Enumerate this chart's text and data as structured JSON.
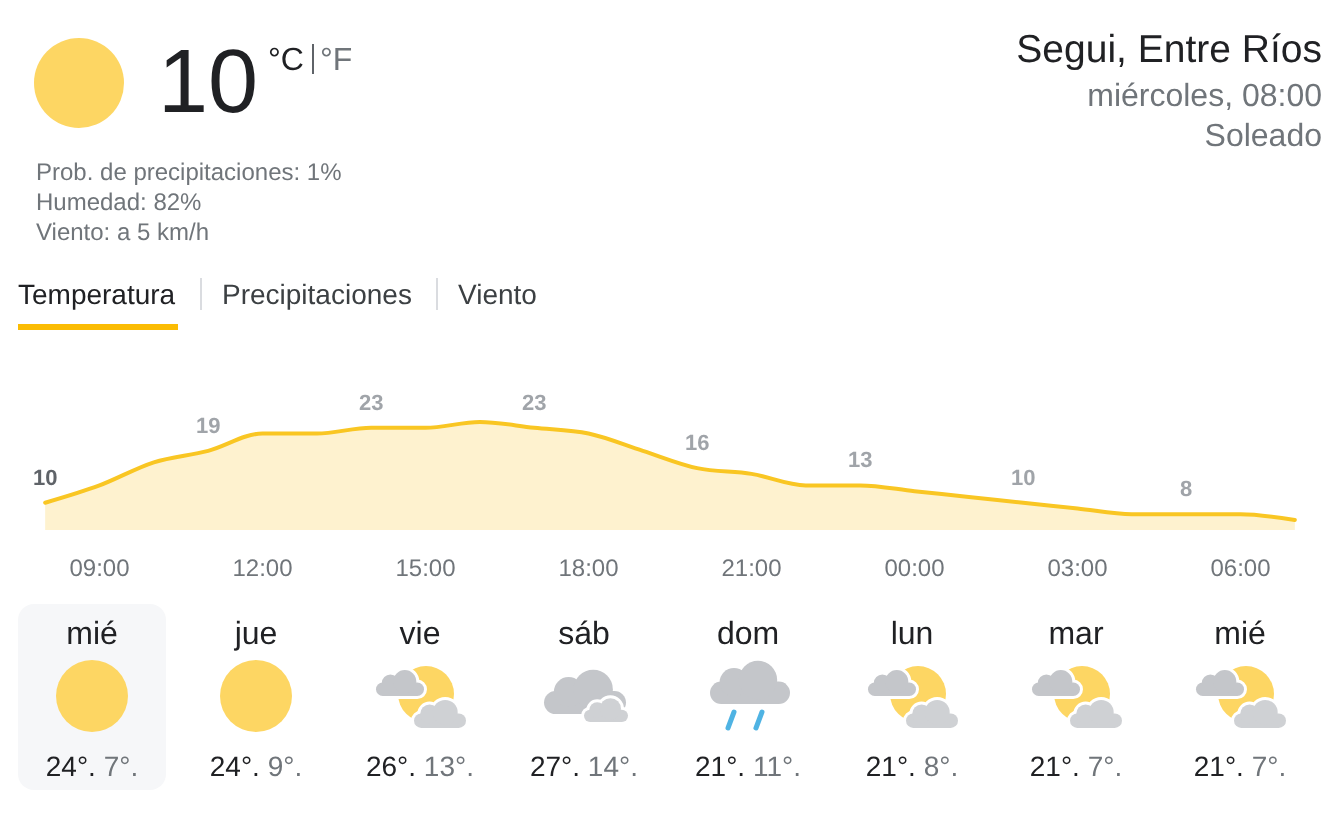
{
  "chart_data": [
    {
      "type": "other",
      "title": "Segui, Entre Ríos",
      "subtitle": "miércoles, 08:00",
      "annotations": [
        "10",
        "°C",
        "°F",
        "Prob. de precipitaciones: 1%",
        "Humedad: 82%",
        "Viento: a 5 km/h",
        "Soleado",
        "Temperatura",
        "Precipitaciones",
        "Viento"
      ]
    },
    {
      "type": "area",
      "categories": [
        null,
        "09:00",
        null,
        null,
        "12:00",
        null,
        null,
        "15:00",
        null,
        null,
        "18:00",
        null,
        null,
        "21:00",
        null,
        null,
        "00:00",
        null,
        null,
        "03:00",
        null,
        null,
        "06:00",
        null
      ],
      "values": [
        10,
        13,
        17,
        19,
        22,
        22,
        23,
        23,
        24,
        23,
        22,
        19,
        16,
        15,
        13,
        13,
        12,
        11,
        10,
        9,
        8,
        8,
        8,
        7
      ],
      "color": "#f9c623",
      "value_labels": [
        "10",
        null,
        null,
        "19",
        null,
        null,
        "23",
        null,
        null,
        "23",
        null,
        null,
        "16",
        null,
        null,
        "13",
        null,
        null,
        "10",
        null,
        null,
        "8",
        null,
        null
      ],
      "tick_labels": "x"
    },
    {
      "type": "other",
      "categories": [
        "mié",
        "jue",
        "vie",
        "sáb",
        "dom",
        "lun",
        "mar",
        "mié"
      ],
      "series": [
        {
          "values": [
            24,
            24,
            26,
            27,
            21,
            21,
            21,
            21
          ],
          "value_labels": [
            "24°.",
            "24°.",
            "26°.",
            "27°.",
            "21°.",
            "21°.",
            "21°.",
            "21°."
          ]
        },
        {
          "values": [
            7,
            9,
            13,
            14,
            11,
            8,
            7,
            7
          ],
          "value_labels": [
            "7°.",
            "9°.",
            "13°.",
            "14°.",
            "11°.",
            "8°.",
            "7°.",
            "7°."
          ]
        }
      ]
    }
  ]
}
